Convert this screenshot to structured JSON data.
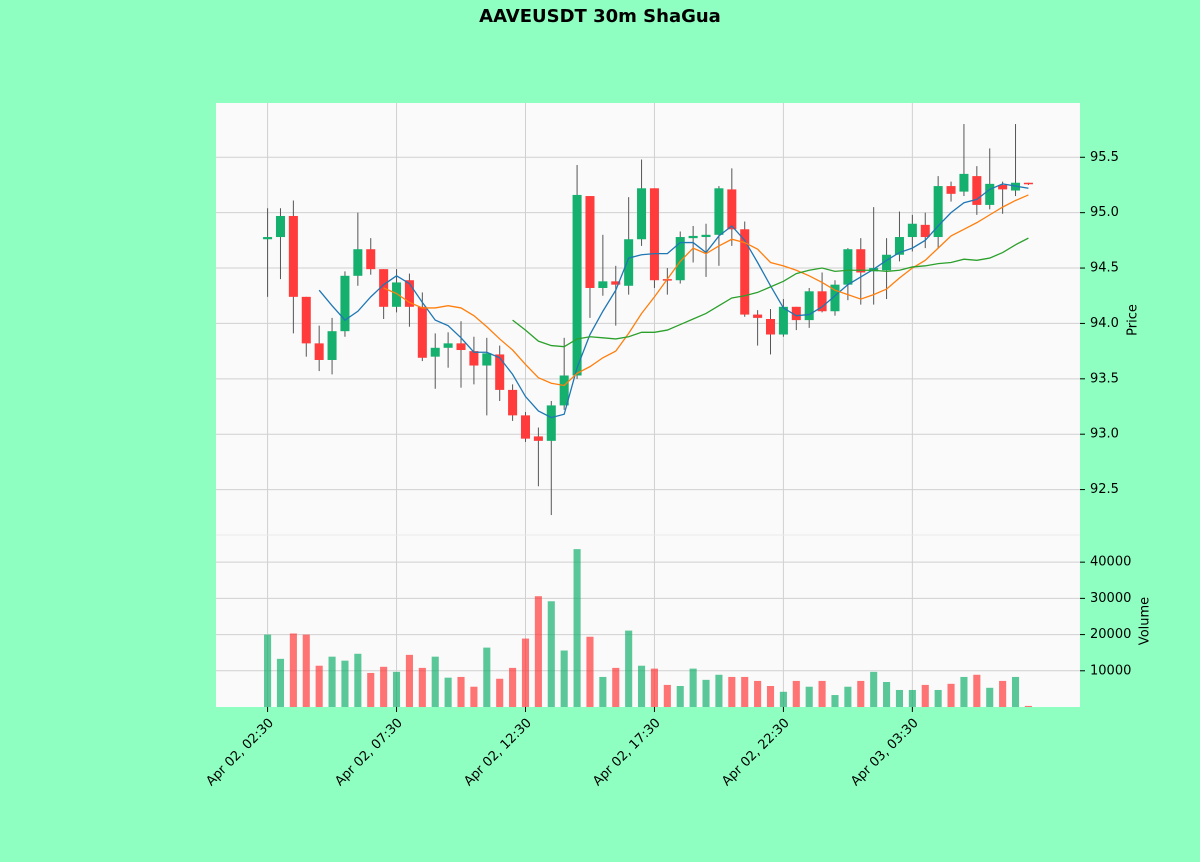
{
  "chart_data": {
    "type": "candlestick",
    "title": "AAVEUSDT 30m ShaGua",
    "ylabel": "Price",
    "volume_label": "Volume",
    "up_color": "#16b06e",
    "down_color": "#ff3b3b",
    "xlim": [
      -4,
      63
    ],
    "xticks": [
      {
        "value": 0,
        "label": "Apr 02, 02:30"
      },
      {
        "value": 10,
        "label": "Apr 02, 07:30"
      },
      {
        "value": 20,
        "label": "Apr 02, 12:30"
      },
      {
        "value": 30,
        "label": "Apr 02, 17:30"
      },
      {
        "value": 40,
        "label": "Apr 02, 22:30"
      },
      {
        "value": 50,
        "label": "Apr 03, 03:30"
      }
    ],
    "ylim": [
      92.09,
      95.99
    ],
    "yticks": [
      92.5,
      {
        "value": 93,
        "label": "93.0"
      },
      93.5,
      {
        "value": 94,
        "label": "94.0"
      },
      94.5,
      {
        "value": 95,
        "label": "95.0"
      },
      95.5
    ],
    "volume_lim": [
      0,
      47500
    ],
    "volume_ticks": [
      10000,
      20000,
      30000,
      40000
    ],
    "grid": true,
    "open": [
      94.76,
      94.78,
      94.97,
      94.24,
      93.82,
      93.67,
      93.93,
      94.43,
      94.67,
      94.49,
      94.15,
      94.39,
      94.15,
      93.7,
      93.78,
      93.82,
      93.75,
      93.62,
      93.72,
      93.4,
      93.17,
      92.98,
      92.94,
      93.26,
      93.53,
      95.15,
      94.32,
      94.38,
      94.34,
      94.76,
      95.22,
      94.4,
      94.39,
      94.77,
      94.78,
      94.8,
      95.21,
      94.85,
      94.08,
      94.04,
      93.9,
      94.15,
      94.03,
      94.29,
      94.11,
      94.35,
      94.67,
      94.47,
      94.48,
      94.62,
      94.78,
      94.89,
      94.78,
      95.24,
      95.19,
      95.33,
      95.07,
      95.25,
      95.2,
      95.27
    ],
    "high": [
      95.04,
      95.04,
      95.11,
      94.24,
      93.98,
      94.05,
      94.47,
      95.0,
      94.77,
      94.49,
      94.49,
      94.45,
      94.28,
      93.91,
      93.92,
      94.02,
      93.88,
      93.87,
      93.8,
      93.45,
      93.2,
      93.06,
      93.3,
      93.87,
      95.43,
      95.15,
      94.8,
      94.52,
      95.14,
      95.48,
      95.22,
      94.5,
      94.83,
      94.88,
      94.9,
      95.24,
      95.4,
      94.92,
      94.12,
      94.13,
      94.22,
      94.15,
      94.32,
      94.46,
      94.39,
      94.68,
      94.77,
      95.05,
      94.77,
      95.01,
      94.98,
      95.0,
      95.33,
      95.28,
      95.8,
      95.42,
      95.58,
      95.28,
      95.8,
      95.27
    ],
    "low": [
      94.24,
      94.4,
      93.91,
      93.7,
      93.57,
      93.54,
      93.88,
      94.34,
      94.44,
      94.04,
      94.1,
      93.97,
      93.66,
      93.41,
      93.6,
      93.42,
      93.45,
      93.17,
      93.3,
      93.12,
      92.93,
      92.53,
      92.27,
      93.22,
      93.5,
      94.05,
      94.25,
      93.98,
      94.26,
      94.7,
      94.32,
      94.26,
      94.36,
      94.55,
      94.42,
      94.52,
      94.7,
      94.06,
      93.8,
      93.72,
      93.88,
      93.94,
      93.96,
      94.1,
      94.07,
      94.21,
      94.17,
      94.17,
      94.22,
      94.56,
      94.65,
      94.68,
      94.68,
      95.1,
      95.15,
      94.98,
      95.03,
      94.99,
      95.15,
      95.25
    ],
    "close": [
      94.78,
      94.97,
      94.24,
      93.82,
      93.67,
      93.93,
      94.43,
      94.67,
      94.49,
      94.15,
      94.37,
      94.15,
      93.69,
      93.78,
      93.82,
      93.76,
      93.62,
      93.73,
      93.4,
      93.17,
      92.96,
      92.94,
      93.26,
      93.53,
      95.16,
      94.32,
      94.38,
      94.35,
      94.76,
      95.22,
      94.39,
      94.39,
      94.78,
      94.79,
      94.8,
      95.22,
      94.85,
      94.08,
      94.05,
      93.9,
      94.15,
      94.03,
      94.29,
      94.11,
      94.35,
      94.67,
      94.46,
      94.5,
      94.62,
      94.78,
      94.9,
      94.78,
      95.24,
      95.17,
      95.35,
      95.07,
      95.26,
      95.21,
      95.27,
      95.26
    ],
    "volume": [
      20000,
      13300,
      20300,
      20000,
      11400,
      13900,
      12800,
      14700,
      9400,
      11100,
      9700,
      14400,
      10800,
      13900,
      8100,
      8300,
      5600,
      16400,
      7800,
      10800,
      18900,
      30600,
      29200,
      15600,
      43600,
      19400,
      8300,
      10800,
      21100,
      11400,
      10600,
      6100,
      5800,
      10600,
      7500,
      8900,
      8300,
      8300,
      7200,
      5800,
      4200,
      7200,
      5600,
      7200,
      3300,
      5600,
      7200,
      9700,
      6900,
      4700,
      4700,
      6100,
      4700,
      6400,
      8300,
      8900,
      5300,
      7200,
      8300,
      300
    ],
    "moving_averages": [
      {
        "color": "#1f77b4",
        "values": [
          null,
          null,
          null,
          null,
          94.3,
          94.16,
          94.03,
          94.11,
          94.24,
          94.35,
          94.43,
          94.36,
          94.19,
          94.03,
          93.98,
          93.87,
          93.74,
          93.74,
          93.69,
          93.54,
          93.34,
          93.21,
          93.15,
          93.18,
          93.6,
          93.9,
          94.11,
          94.3,
          94.59,
          94.62,
          94.63,
          94.63,
          94.73,
          94.73,
          94.64,
          94.79,
          94.88,
          94.75,
          94.55,
          94.34,
          94.14,
          94.07,
          94.08,
          94.15,
          94.25,
          94.35,
          94.42,
          94.49,
          94.57,
          94.64,
          94.68,
          94.75,
          94.88,
          95.0,
          95.09,
          95.12,
          95.21,
          95.26,
          95.24,
          95.22
        ]
      },
      {
        "color": "#ff7f0e",
        "values": [
          null,
          null,
          null,
          null,
          null,
          null,
          null,
          null,
          null,
          94.32,
          94.27,
          94.19,
          94.14,
          94.14,
          94.16,
          94.14,
          94.07,
          93.97,
          93.86,
          93.76,
          93.63,
          93.51,
          93.46,
          93.44,
          93.55,
          93.61,
          93.69,
          93.75,
          93.91,
          94.09,
          94.24,
          94.4,
          94.56,
          94.68,
          94.63,
          94.7,
          94.76,
          94.73,
          94.67,
          94.55,
          94.52,
          94.48,
          94.43,
          94.37,
          94.3,
          94.26,
          94.22,
          94.26,
          94.31,
          94.41,
          94.5,
          94.57,
          94.68,
          94.79,
          94.85,
          94.91,
          94.98,
          95.05,
          95.11,
          95.16
        ]
      },
      {
        "color": "#2ca02c",
        "values": [
          null,
          null,
          null,
          null,
          null,
          null,
          null,
          null,
          null,
          null,
          null,
          null,
          null,
          null,
          null,
          null,
          null,
          null,
          null,
          94.03,
          93.94,
          93.84,
          93.8,
          93.79,
          93.86,
          93.88,
          93.87,
          93.86,
          93.88,
          93.92,
          93.92,
          93.94,
          93.99,
          94.04,
          94.09,
          94.16,
          94.23,
          94.25,
          94.28,
          94.33,
          94.38,
          94.45,
          94.48,
          94.5,
          94.47,
          94.48,
          94.48,
          94.48,
          94.47,
          94.48,
          94.51,
          94.52,
          94.54,
          94.55,
          94.58,
          94.57,
          94.59,
          94.64,
          94.71,
          94.77
        ]
      }
    ]
  }
}
